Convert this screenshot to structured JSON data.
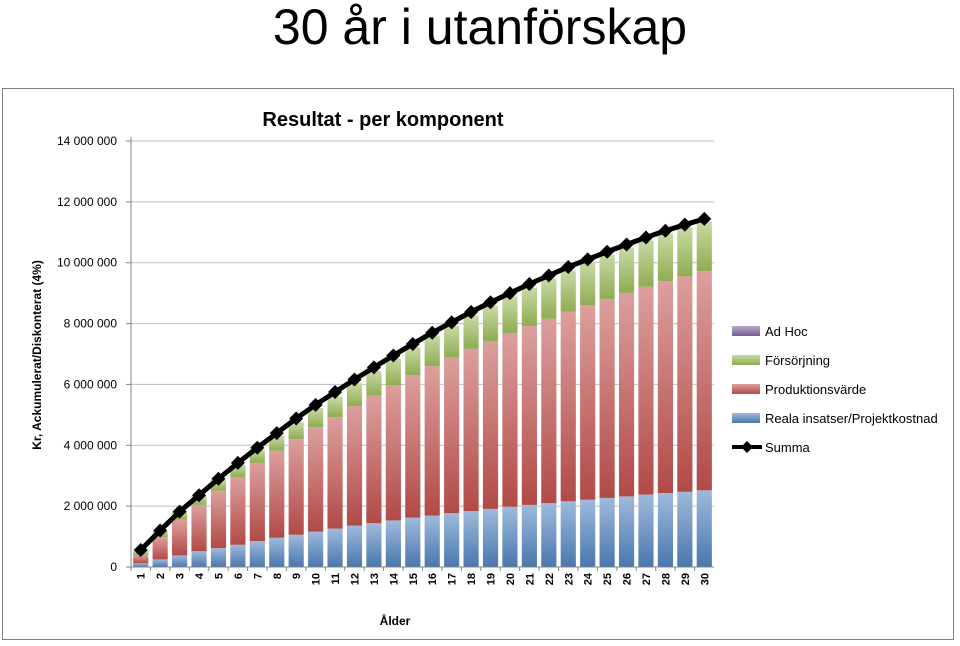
{
  "slide": {
    "title": "30 år i utanförskap"
  },
  "chart_data": {
    "type": "bar",
    "stacked": true,
    "title": "Resultat - per komponent",
    "xlabel": "Ålder",
    "ylabel": "Kr, Ackumulerat/Diskonterat (4%)",
    "ylim": [
      0,
      14000000
    ],
    "yticks": [
      0,
      2000000,
      4000000,
      6000000,
      8000000,
      10000000,
      12000000,
      14000000
    ],
    "ytick_labels": [
      "0",
      "2 000 000",
      "4 000 000",
      "6 000 000",
      "8 000 000",
      "10 000 000",
      "12 000 000",
      "14 000 000"
    ],
    "grid": true,
    "legend_position": "right",
    "categories": [
      "1",
      "2",
      "3",
      "4",
      "5",
      "6",
      "7",
      "8",
      "9",
      "10",
      "11",
      "12",
      "13",
      "14",
      "15",
      "16",
      "17",
      "18",
      "19",
      "20",
      "21",
      "22",
      "23",
      "24",
      "25",
      "26",
      "27",
      "28",
      "29",
      "30"
    ],
    "series": [
      {
        "name": "Reala insatser/Projektkostnad",
        "kind": "bar",
        "color": "#4f81bd",
        "values": [
          120000,
          250000,
          380000,
          520000,
          620000,
          730000,
          850000,
          960000,
          1060000,
          1160000,
          1260000,
          1360000,
          1440000,
          1530000,
          1620000,
          1690000,
          1770000,
          1840000,
          1910000,
          1980000,
          2040000,
          2100000,
          2160000,
          2210000,
          2270000,
          2320000,
          2380000,
          2430000,
          2470000,
          2520000
        ]
      },
      {
        "name": "Produktionsvärde",
        "kind": "bar",
        "color": "#c0504d",
        "values": [
          270000,
          730000,
          1180000,
          1520000,
          1890000,
          2230000,
          2570000,
          2860000,
          3140000,
          3440000,
          3660000,
          3930000,
          4190000,
          4450000,
          4680000,
          4910000,
          5120000,
          5330000,
          5520000,
          5700000,
          5880000,
          6060000,
          6230000,
          6390000,
          6540000,
          6690000,
          6830000,
          6960000,
          7080000,
          7200000
        ]
      },
      {
        "name": "Försörjning",
        "kind": "bar",
        "color": "#9bbb59",
        "values": [
          150000,
          200000,
          270000,
          300000,
          360000,
          400000,
          440000,
          500000,
          560000,
          630000,
          680000,
          750000,
          810000,
          870000,
          920000,
          990000,
          1040000,
          1100000,
          1150000,
          1210000,
          1260000,
          1310000,
          1350000,
          1400000,
          1450000,
          1490000,
          1520000,
          1570000,
          1610000,
          1640000
        ]
      },
      {
        "name": "Ad Hoc",
        "kind": "bar",
        "color": "#8064a2",
        "values": [
          0,
          0,
          0,
          0,
          0,
          0,
          0,
          0,
          0,
          0,
          0,
          0,
          0,
          0,
          0,
          0,
          0,
          0,
          0,
          0,
          0,
          0,
          0,
          0,
          0,
          0,
          0,
          0,
          0,
          0
        ]
      },
      {
        "name": "Summa",
        "kind": "line",
        "color": "#000000",
        "values": [
          560000,
          1200000,
          1820000,
          2360000,
          2900000,
          3420000,
          3920000,
          4400000,
          4880000,
          5330000,
          5750000,
          6160000,
          6560000,
          6950000,
          7330000,
          7700000,
          8040000,
          8380000,
          8700000,
          9000000,
          9300000,
          9580000,
          9860000,
          10110000,
          10360000,
          10600000,
          10830000,
          11050000,
          11250000,
          11440000
        ]
      }
    ],
    "legend_order": [
      "Ad Hoc",
      "Försörjning",
      "Produktionsvärde",
      "Reala insatser/Projektkostnad",
      "Summa"
    ]
  }
}
